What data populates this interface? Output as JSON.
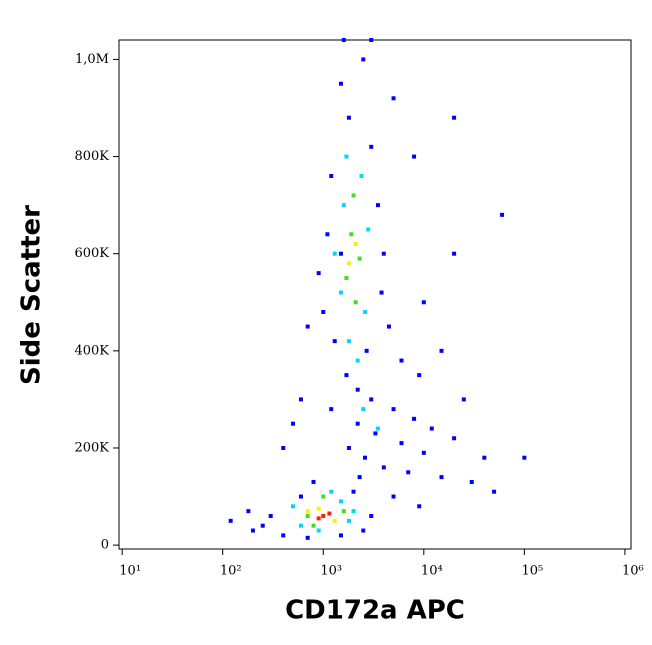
{
  "chart_data": {
    "type": "scatter",
    "x_label": "CD172a APC",
    "y_label": "Side Scatter",
    "xscale": "log",
    "xlim": [
      9.3,
      1150000
    ],
    "ylim": [
      -8000,
      1040000
    ],
    "xticks": [
      {
        "value": 10,
        "label": "10¹"
      },
      {
        "value": 100,
        "label": "10²"
      },
      {
        "value": 1000,
        "label": "10³"
      },
      {
        "value": 10000,
        "label": "10⁴"
      },
      {
        "value": 100000,
        "label": "10⁵"
      },
      {
        "value": 1000000,
        "label": "10⁶"
      }
    ],
    "yticks": [
      0,
      {
        "value": 200000,
        "label": "200K"
      },
      {
        "value": 400000,
        "label": "400K"
      },
      {
        "value": 600000,
        "label": "600K"
      },
      {
        "value": 800000,
        "label": "800K"
      },
      {
        "value": 1000000,
        "label": "1,0M"
      }
    ],
    "series": [
      {
        "color": "#0000ff",
        "x": [
          1500,
          2500,
          1800,
          3000,
          1200,
          3500,
          1100,
          4000,
          900,
          3800,
          1000,
          4500,
          1300,
          6000,
          1700,
          2200,
          3000,
          5000,
          8000,
          12000,
          20000,
          1800,
          2600,
          4000,
          7000,
          15000,
          30000,
          50000,
          2200,
          3300,
          6000,
          10000,
          40000,
          100000,
          600,
          300,
          250,
          200,
          400,
          700,
          1500,
          2500,
          3000,
          2000,
          800,
          120,
          180,
          500,
          700,
          600,
          10000,
          15000,
          20000,
          60000,
          8000,
          3000,
          1600,
          5000,
          20000,
          400,
          9000,
          25000,
          1200,
          1500,
          2700,
          2300,
          5000,
          9000
        ],
        "y": [
          950000,
          1000000,
          880000,
          820000,
          760000,
          700000,
          640000,
          600000,
          560000,
          520000,
          480000,
          450000,
          420000,
          380000,
          350000,
          320000,
          300000,
          280000,
          260000,
          240000,
          220000,
          200000,
          180000,
          160000,
          150000,
          140000,
          130000,
          110000,
          250000,
          230000,
          210000,
          190000,
          180000,
          180000,
          100000,
          60000,
          40000,
          30000,
          20000,
          15000,
          20000,
          30000,
          60000,
          110000,
          130000,
          50000,
          70000,
          250000,
          450000,
          300000,
          500000,
          400000,
          600000,
          680000,
          800000,
          1040000,
          1040000,
          920000,
          880000,
          200000,
          350000,
          300000,
          280000,
          600000,
          400000,
          140000,
          100000,
          80000
        ]
      },
      {
        "color": "#00d8ff",
        "x": [
          1700,
          2400,
          1600,
          2800,
          1500,
          2600,
          1800,
          2200,
          1300,
          2500,
          3500,
          600,
          1800,
          500,
          1500,
          900,
          2000,
          1200
        ],
        "y": [
          800000,
          760000,
          700000,
          650000,
          520000,
          480000,
          420000,
          380000,
          600000,
          280000,
          240000,
          40000,
          50000,
          80000,
          90000,
          30000,
          70000,
          110000
        ]
      },
      {
        "color": "#44dd22",
        "x": [
          2000,
          1900,
          2300,
          1700,
          2100,
          700,
          1600,
          1000,
          800
        ],
        "y": [
          720000,
          640000,
          590000,
          550000,
          500000,
          60000,
          70000,
          100000,
          40000
        ]
      },
      {
        "color": "#ffee00",
        "x": [
          2100,
          1800,
          900,
          1300,
          700
        ],
        "y": [
          620000,
          580000,
          75000,
          50000,
          70000
        ]
      },
      {
        "color": "#ff2200",
        "x": [
          1000,
          1150,
          900
        ],
        "y": [
          60000,
          65000,
          55000
        ]
      }
    ]
  }
}
